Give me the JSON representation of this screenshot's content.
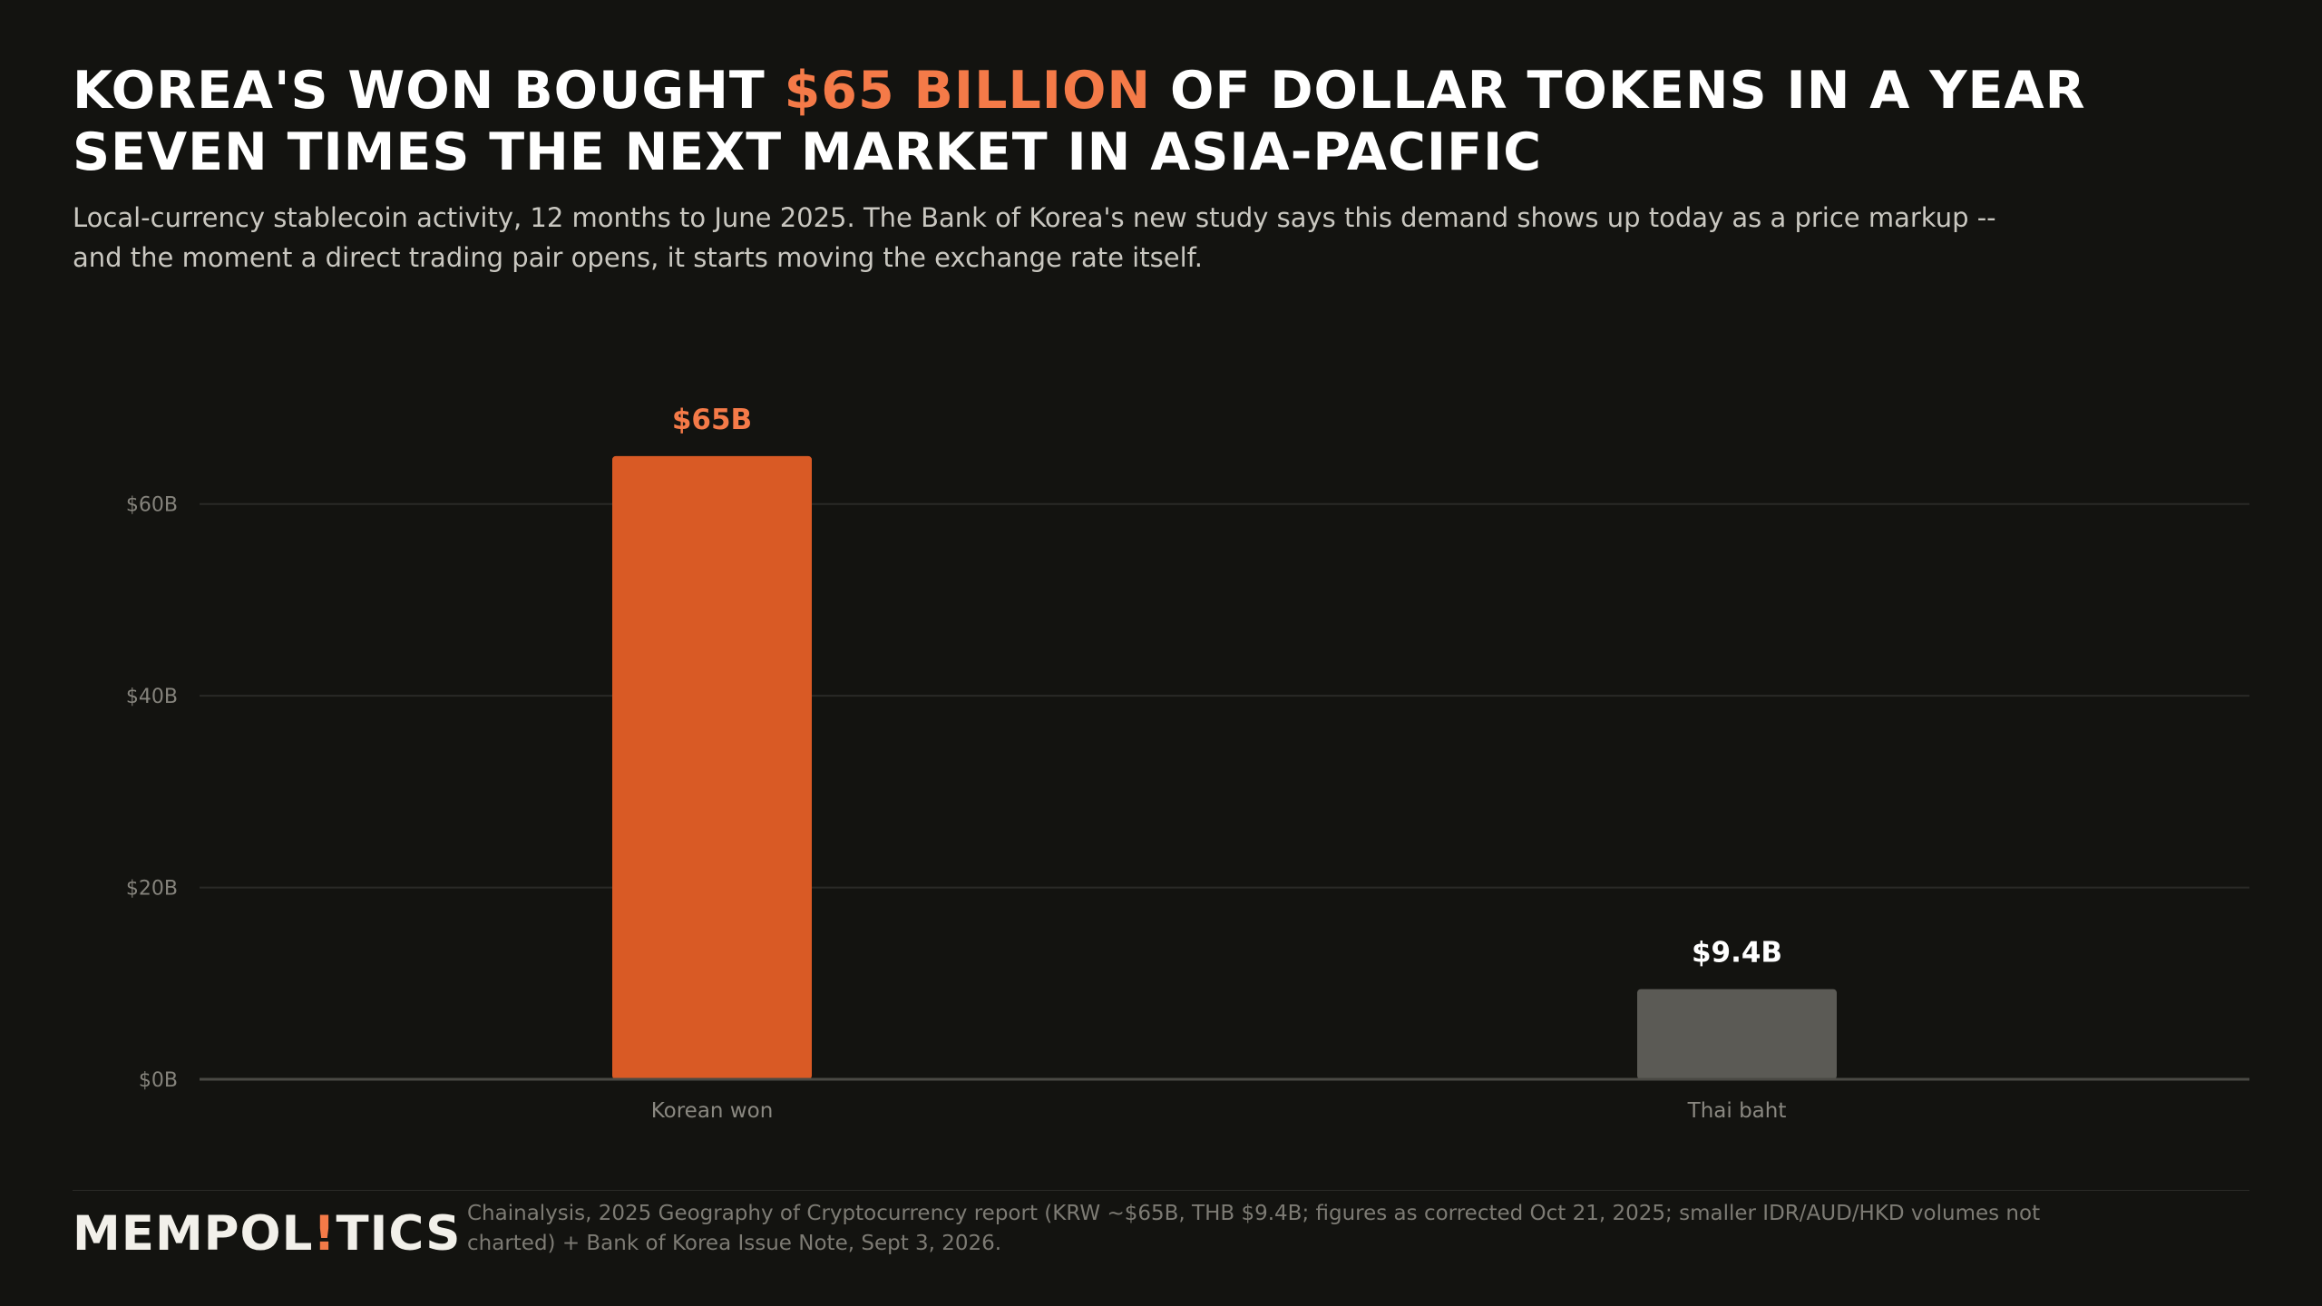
{
  "headline": {
    "line1_pre": "KOREA'S WON BOUGHT ",
    "line1_highlight": "$65 BILLION",
    "line1_post": " OF DOLLAR TOKENS IN A YEAR",
    "line2": "SEVEN TIMES THE NEXT MARKET IN ASIA-PACIFIC"
  },
  "subtitle": "Local-currency stablecoin activity, 12 months to June 2025. The Bank of Korea's new study says this demand shows up today as a price markup -- and the moment a direct trading pair opens, it starts moving the exchange rate itself.",
  "brand": {
    "pre": "MEMPOL",
    "accent": "!",
    "post": "TICS"
  },
  "source": "Chainalysis, 2025 Geography of Cryptocurrency report (KRW ~$65B, THB $9.4B; figures as corrected Oct 21, 2025; smaller IDR/AUD/HKD volumes not charted) + Bank of Korea Issue Note, Sept 3, 2026.",
  "colors": {
    "background": "#131310",
    "highlight": "#f47a48",
    "bar_primary": "#d95a25",
    "bar_secondary": "#5b5a55",
    "grid": "#2a2a27",
    "axis": "#4a4944"
  },
  "chart_data": {
    "type": "bar",
    "categories": [
      "Korean won",
      "Thai baht"
    ],
    "values": [
      65,
      9.4
    ],
    "value_labels": [
      "$65B",
      "$9.4B"
    ],
    "title": "",
    "xlabel": "",
    "ylabel": "",
    "ylim": [
      0,
      70
    ],
    "yticks": [
      0,
      20,
      40,
      60
    ],
    "ytick_labels": [
      "$0B",
      "$20B",
      "$40B",
      "$60B"
    ],
    "grid": true,
    "legend": "none"
  }
}
